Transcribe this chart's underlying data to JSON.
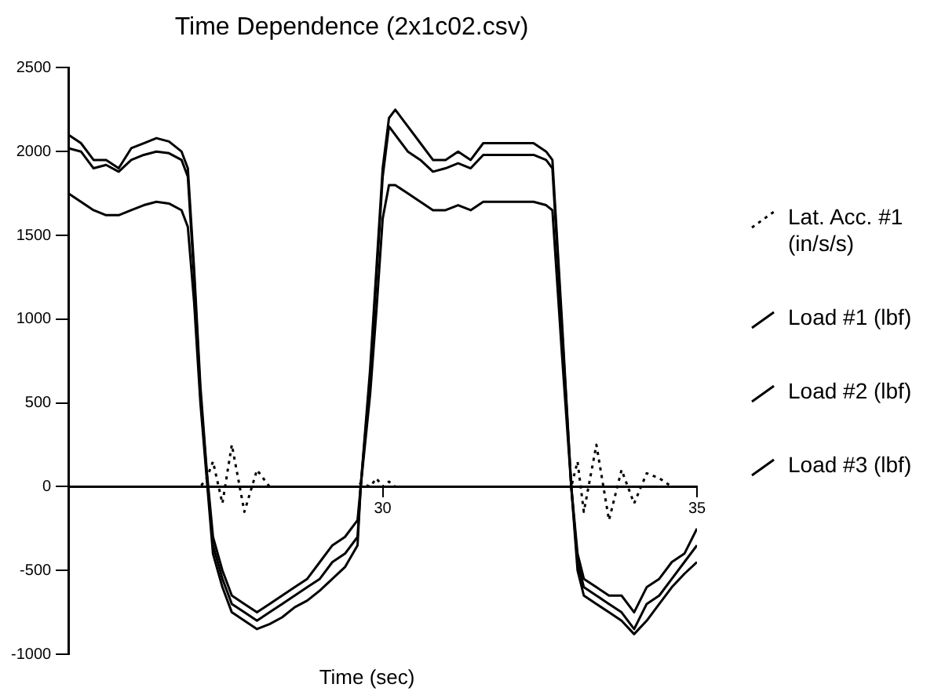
{
  "chart_data": {
    "type": "line",
    "title": "Time Dependence (2x1c02.csv)",
    "xlabel": "Time (sec)",
    "legend": "right",
    "marker": "none",
    "xlim": [
      25,
      35
    ],
    "xticks": [
      30,
      35
    ],
    "ylim": [
      -1000,
      2500
    ],
    "yticks": [
      -1000,
      -500,
      0,
      500,
      1000,
      1500,
      2000,
      2500
    ],
    "x": [
      25,
      25.2,
      25.4,
      25.6,
      25.8,
      26.0,
      26.2,
      26.4,
      26.6,
      26.8,
      26.9,
      27.0,
      27.1,
      27.2,
      27.3,
      27.45,
      27.6,
      27.8,
      28.0,
      28.2,
      28.4,
      28.6,
      28.8,
      29.0,
      29.2,
      29.4,
      29.6,
      29.65,
      29.8,
      29.9,
      30.0,
      30.1,
      30.2,
      30.4,
      30.6,
      30.8,
      31.0,
      31.2,
      31.4,
      31.6,
      31.8,
      32.0,
      32.2,
      32.4,
      32.6,
      32.7,
      32.85,
      33.0,
      33.1,
      33.2,
      33.4,
      33.6,
      33.8,
      34.0,
      34.2,
      34.4,
      34.6,
      34.8,
      35.0
    ],
    "series": [
      {
        "name": "Lat. Acc. #1 (in/s/s)",
        "color": "#000000",
        "line_style": "dotted",
        "values": [
          0,
          0,
          0,
          0,
          0,
          0,
          0,
          0,
          0,
          0,
          0,
          0,
          0,
          50,
          150,
          -100,
          250,
          -150,
          100,
          0,
          0,
          0,
          0,
          0,
          0,
          0,
          0,
          20,
          0,
          50,
          0,
          30,
          0,
          0,
          0,
          0,
          0,
          0,
          0,
          0,
          0,
          0,
          0,
          0,
          0,
          0,
          0,
          0,
          150,
          -150,
          250,
          -200,
          100,
          -100,
          80,
          50,
          0,
          0,
          0
        ]
      },
      {
        "name": "Load #1 (lbf)",
        "color": "#000000",
        "values": [
          2100,
          2050,
          1950,
          1950,
          1900,
          2020,
          2050,
          2080,
          2060,
          2000,
          1900,
          1300,
          600,
          100,
          -300,
          -500,
          -650,
          -700,
          -750,
          -700,
          -650,
          -600,
          -550,
          -450,
          -350,
          -300,
          -200,
          0,
          700,
          1300,
          1900,
          2200,
          2250,
          2150,
          2050,
          1950,
          1950,
          2000,
          1950,
          2050,
          2050,
          2050,
          2050,
          2050,
          2000,
          1950,
          1000,
          0,
          -400,
          -550,
          -600,
          -650,
          -650,
          -750,
          -600,
          -550,
          -450,
          -400,
          -250
        ]
      },
      {
        "name": "Load #2 (lbf)",
        "color": "#000000",
        "values": [
          2020,
          2000,
          1900,
          1920,
          1880,
          1950,
          1980,
          2000,
          1990,
          1950,
          1850,
          1250,
          550,
          80,
          -350,
          -550,
          -700,
          -750,
          -800,
          -750,
          -700,
          -650,
          -600,
          -550,
          -450,
          -400,
          -300,
          0,
          650,
          1250,
          1850,
          2150,
          2100,
          2000,
          1950,
          1880,
          1900,
          1930,
          1900,
          1980,
          1980,
          1980,
          1980,
          1980,
          1950,
          1900,
          950,
          0,
          -450,
          -600,
          -650,
          -700,
          -750,
          -850,
          -700,
          -650,
          -550,
          -450,
          -350
        ]
      },
      {
        "name": "Load #3 (lbf)",
        "color": "#000000",
        "values": [
          1750,
          1700,
          1650,
          1620,
          1620,
          1650,
          1680,
          1700,
          1690,
          1650,
          1550,
          1100,
          500,
          50,
          -400,
          -600,
          -750,
          -800,
          -850,
          -820,
          -780,
          -720,
          -680,
          -620,
          -550,
          -480,
          -350,
          0,
          550,
          1050,
          1600,
          1800,
          1800,
          1750,
          1700,
          1650,
          1650,
          1680,
          1650,
          1700,
          1700,
          1700,
          1700,
          1700,
          1680,
          1650,
          800,
          0,
          -500,
          -650,
          -700,
          -750,
          -800,
          -880,
          -800,
          -700,
          -600,
          -520,
          -450
        ]
      }
    ]
  }
}
